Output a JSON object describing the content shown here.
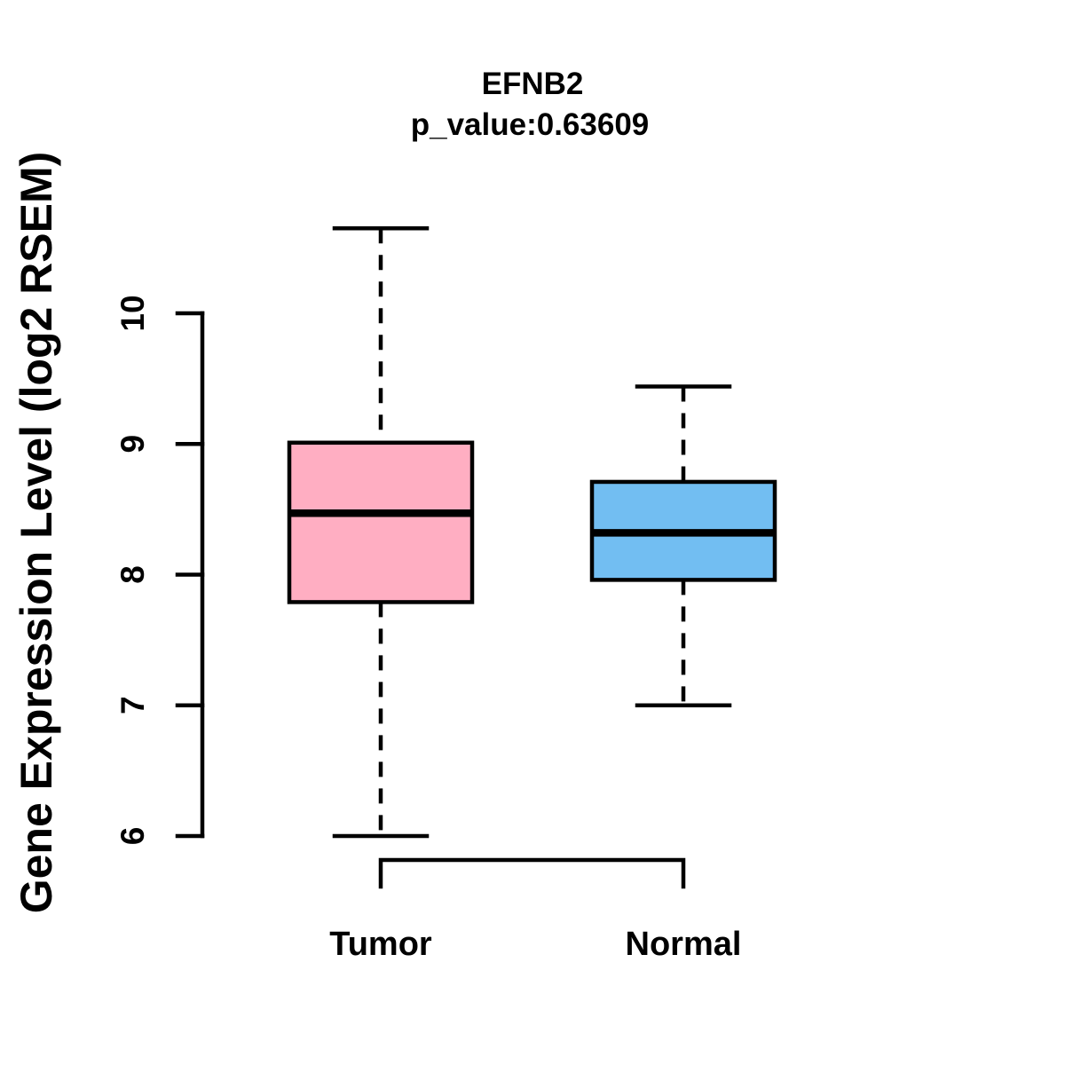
{
  "figure": {
    "title": "EFNB2",
    "subtitle": "p_value:0.63609",
    "ylabel": "Gene Expression Level (log2 RSEM)"
  },
  "chart_data": {
    "type": "boxplot",
    "title": "EFNB2",
    "subtitle": "p_value:0.63609",
    "gene": "EFNB2",
    "p_value": 0.63609,
    "ylabel": "Gene Expression Level (log2 RSEM)",
    "xlabel": "",
    "ylim": [
      6,
      10
    ],
    "yticks": [
      6,
      7,
      8,
      9,
      10
    ],
    "categories": [
      "Tumor",
      "Normal"
    ],
    "series": [
      {
        "name": "Tumor",
        "whisker_low": 6.0,
        "q1": 7.79,
        "median": 8.47,
        "q3": 9.01,
        "whisker_high": 10.65,
        "outliers": [],
        "fill_color": "#FFAEC2"
      },
      {
        "name": "Normal",
        "whisker_low": 7.0,
        "q1": 7.96,
        "median": 8.32,
        "q3": 8.71,
        "whisker_high": 9.44,
        "outliers": [],
        "fill_color": "#72BEF2"
      }
    ],
    "grid": false,
    "legend": false,
    "whisker_style": "dashed",
    "colors": {
      "tumor_fill": "#FFAEC2",
      "normal_fill": "#72BEF2",
      "stroke": "#000000",
      "background": "#FFFFFF"
    }
  }
}
